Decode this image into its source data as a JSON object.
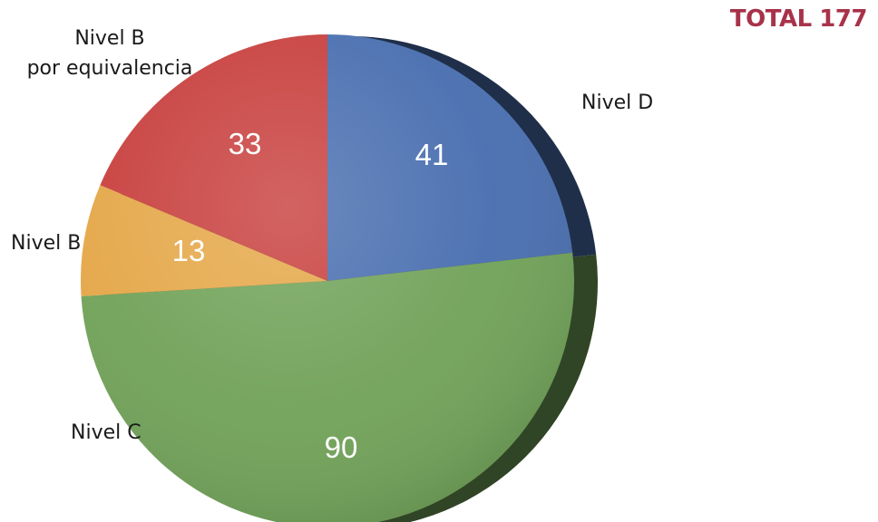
{
  "total_label": "TOTAL 177",
  "chart_data": {
    "type": "pie",
    "title": "",
    "total": 177,
    "slices": [
      {
        "label": "Nivel D",
        "value": 41,
        "color": "#4a6fb0"
      },
      {
        "label": "Nivel C",
        "value": 90,
        "color": "#72a35a"
      },
      {
        "label": "Nivel B",
        "value": 13,
        "color": "#e5a84a"
      },
      {
        "label": "Nivel B por equivalencia",
        "value": 33,
        "color": "#c8413f"
      }
    ],
    "labels": {
      "nivel_d": "Nivel D",
      "nivel_c": "Nivel C",
      "nivel_b": "Nivel B",
      "nivel_b_equiv_line1": "Nivel B",
      "nivel_b_equiv_line2": "por equivalencia"
    },
    "value_labels": [
      "41",
      "90",
      "13",
      "33"
    ]
  }
}
